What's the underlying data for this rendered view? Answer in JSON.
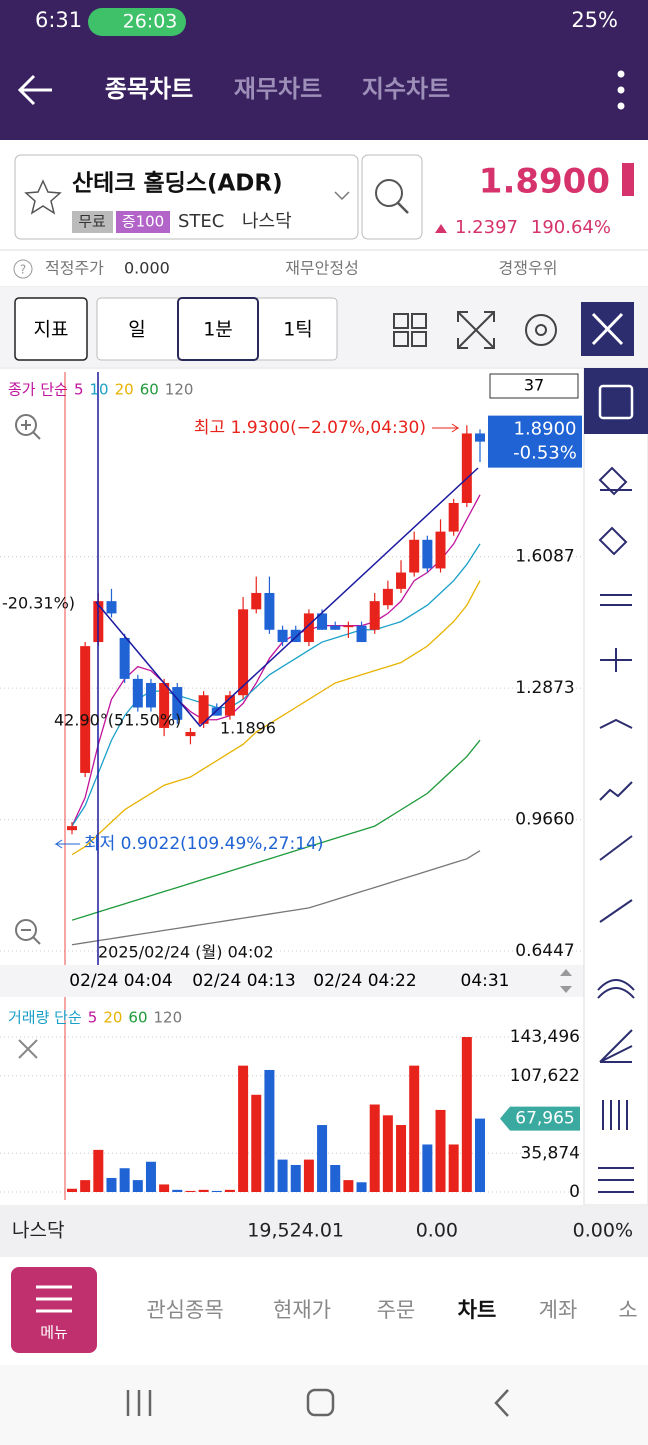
{
  "status_bar": {
    "time": "6:31",
    "call": "26:03",
    "battery": "25%"
  },
  "tabs": [
    "종목차트",
    "재무차트",
    "지수차트"
  ],
  "stock": {
    "name": "산테크 홀딩스(ADR)",
    "tags": [
      "무료",
      "증100"
    ],
    "code": "STEC",
    "market": "나스닥",
    "price": "1.8900",
    "change": "1.2397",
    "change_pct": "190.64%"
  },
  "info": {
    "fair_price_label": "적정주가",
    "fair_price": "0.000",
    "stability": "재무안정성",
    "advantage": "경쟁우위"
  },
  "toolbar": {
    "indicator": "지표",
    "periods": [
      "일",
      "1분",
      "1틱"
    ]
  },
  "chart": {
    "ma_label": "종가 단순",
    "ma_periods": [
      5,
      10,
      20,
      60,
      120
    ],
    "count": "37",
    "up_color": "#e8231b",
    "down_color": "#1f63d4",
    "ylim": [
      0.63,
      2.07
    ],
    "yticks": [
      1.6087,
      1.2873,
      {
        "value": 0.966,
        "label": "0.9660"
      },
      0.6447
    ],
    "current": {
      "price": "1.8900",
      "pct": "-0.53%"
    },
    "high_note": "최고 1.9300(−2.07%,04:30)",
    "low_note": "최저 0.9022(109.49%,27:14)",
    "left_note": "-20.31%)",
    "angle_note": "42.90°(51.50%)",
    "point_note": "1.1896",
    "cursor_date": "2025/02/24 (월) 04:02",
    "time_labels": [
      "02/24 04:04",
      "02/24 04:13",
      "02/24 04:22",
      "04:31"
    ],
    "candles": {
      "open": [
        0.94,
        1.08,
        1.4,
        1.5,
        1.41,
        1.31,
        1.3,
        1.19,
        1.29,
        1.17,
        1.2,
        1.24,
        1.22,
        1.27,
        1.48,
        1.52,
        1.43,
        1.43,
        1.4,
        1.47,
        1.44,
        1.44,
        1.44,
        1.43,
        1.49,
        1.53,
        1.57,
        1.65,
        1.58,
        1.67,
        1.74,
        1.91
      ],
      "high": [
        0.96,
        1.4,
        1.52,
        1.53,
        1.42,
        1.32,
        1.31,
        1.31,
        1.3,
        1.19,
        1.28,
        1.25,
        1.28,
        1.51,
        1.56,
        1.56,
        1.44,
        1.44,
        1.48,
        1.48,
        1.45,
        1.45,
        1.45,
        1.52,
        1.55,
        1.6,
        1.67,
        1.66,
        1.7,
        1.75,
        1.93,
        1.92
      ],
      "low": [
        0.93,
        1.07,
        1.39,
        1.46,
        1.3,
        1.23,
        1.23,
        1.17,
        1.2,
        1.15,
        1.19,
        1.22,
        1.21,
        1.26,
        1.47,
        1.42,
        1.39,
        1.4,
        1.39,
        1.43,
        1.43,
        1.41,
        1.4,
        1.42,
        1.48,
        1.52,
        1.56,
        1.57,
        1.57,
        1.66,
        1.73,
        1.84
      ],
      "close": [
        0.95,
        1.39,
        1.5,
        1.47,
        1.31,
        1.24,
        1.24,
        1.3,
        1.21,
        1.18,
        1.27,
        1.22,
        1.27,
        1.48,
        1.52,
        1.43,
        1.4,
        1.4,
        1.47,
        1.43,
        1.43,
        1.44,
        1.4,
        1.5,
        1.53,
        1.57,
        1.65,
        1.58,
        1.67,
        1.74,
        1.91,
        1.89
      ]
    },
    "ma": [
      {
        "period": 5,
        "color": "#c0149c",
        "values": [
          0.95,
          1.02,
          1.15,
          1.26,
          1.31,
          1.34,
          1.33,
          1.3,
          1.26,
          1.23,
          1.21,
          1.21,
          1.22,
          1.25,
          1.3,
          1.36,
          1.4,
          1.42,
          1.43,
          1.44,
          1.44,
          1.44,
          1.44,
          1.45,
          1.47,
          1.5,
          1.55,
          1.57,
          1.6,
          1.64,
          1.7,
          1.76
        ]
      },
      {
        "period": 10,
        "color": "#1aa0c8",
        "values": [
          0.95,
          1.0,
          1.08,
          1.16,
          1.22,
          1.26,
          1.28,
          1.28,
          1.27,
          1.26,
          1.25,
          1.24,
          1.24,
          1.26,
          1.29,
          1.32,
          1.34,
          1.36,
          1.38,
          1.4,
          1.41,
          1.42,
          1.43,
          1.43,
          1.44,
          1.45,
          1.47,
          1.49,
          1.52,
          1.55,
          1.59,
          1.64
        ]
      },
      {
        "period": 20,
        "color": "#e8b200",
        "values": [
          0.88,
          0.9,
          0.93,
          0.96,
          0.99,
          1.01,
          1.03,
          1.05,
          1.06,
          1.07,
          1.09,
          1.11,
          1.13,
          1.15,
          1.18,
          1.2,
          1.22,
          1.24,
          1.26,
          1.28,
          1.3,
          1.31,
          1.32,
          1.33,
          1.34,
          1.35,
          1.37,
          1.39,
          1.42,
          1.45,
          1.49,
          1.55
        ]
      },
      {
        "period": 60,
        "color": "#1e9a3a",
        "values": [
          0.72,
          0.73,
          0.74,
          0.75,
          0.76,
          0.77,
          0.78,
          0.79,
          0.8,
          0.81,
          0.82,
          0.83,
          0.84,
          0.85,
          0.86,
          0.87,
          0.88,
          0.89,
          0.9,
          0.91,
          0.92,
          0.93,
          0.94,
          0.95,
          0.97,
          0.99,
          1.01,
          1.03,
          1.06,
          1.09,
          1.12,
          1.16
        ]
      },
      {
        "period": 120,
        "color": "#777777",
        "values": [
          0.66,
          0.665,
          0.67,
          0.675,
          0.68,
          0.685,
          0.69,
          0.695,
          0.7,
          0.705,
          0.71,
          0.715,
          0.72,
          0.725,
          0.73,
          0.735,
          0.74,
          0.745,
          0.75,
          0.76,
          0.77,
          0.78,
          0.79,
          0.8,
          0.81,
          0.82,
          0.83,
          0.84,
          0.85,
          0.86,
          0.87,
          0.89
        ]
      }
    ]
  },
  "volume": {
    "label": "거래량 단순",
    "ma_periods": [
      5,
      20,
      60,
      120
    ],
    "ma_colors": [
      "#c0149c",
      "#e8b200",
      "#1e9a3a",
      "#777777"
    ],
    "ylim": [
      0,
      150000
    ],
    "yticks": [
      {
        "value": 143496,
        "label": "143,496"
      },
      {
        "value": 107622,
        "label": "107,622"
      },
      {
        "value": 35874,
        "label": "35,874"
      },
      0
    ],
    "current": {
      "value": 67965,
      "label": "67,965"
    },
    "values": [
      3000,
      11000,
      39000,
      13000,
      22000,
      11000,
      28000,
      7000,
      2000,
      1000,
      2000,
      1000,
      2000,
      117000,
      90000,
      113000,
      30000,
      25000,
      30000,
      62000,
      25000,
      11000,
      9000,
      81000,
      71000,
      62000,
      117000,
      44000,
      76000,
      44000,
      143496,
      67965
    ]
  },
  "index_bar": {
    "name": "나스닥",
    "value": "19,524.01",
    "change": "0.00",
    "pct": "0.00%"
  },
  "bottom_nav": {
    "menu": "메뉴",
    "items": [
      "관심종목",
      "현재가",
      "주문",
      "차트",
      "계좌",
      "소"
    ]
  }
}
